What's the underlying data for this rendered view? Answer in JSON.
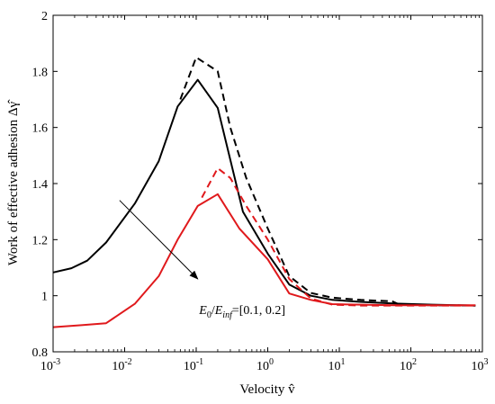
{
  "chart_data": {
    "type": "line",
    "xscale": "log",
    "xlim": [
      0.001,
      1000
    ],
    "ylim": [
      0.8,
      2.0
    ],
    "xlabel": "Velocity v̂",
    "ylabel": "Work of effective adhesion Δγ̂",
    "xticks": [
      {
        "value": 0.001,
        "base": "10",
        "exp": "-3"
      },
      {
        "value": 0.01,
        "base": "10",
        "exp": "-2"
      },
      {
        "value": 0.1,
        "base": "10",
        "exp": "-1"
      },
      {
        "value": 1,
        "base": "10",
        "exp": "0"
      },
      {
        "value": 10,
        "base": "10",
        "exp": "1"
      },
      {
        "value": 100,
        "base": "10",
        "exp": "2"
      },
      {
        "value": 1000,
        "base": "10",
        "exp": "3"
      }
    ],
    "yticks": [
      {
        "value": 0.8,
        "label": "0.8"
      },
      {
        "value": 1.0,
        "label": "1"
      },
      {
        "value": 1.2,
        "label": "1.2"
      },
      {
        "value": 1.4,
        "label": "1.4"
      },
      {
        "value": 1.6,
        "label": "1.6"
      },
      {
        "value": 1.8,
        "label": "1.8"
      },
      {
        "value": 2.0,
        "label": "2"
      }
    ],
    "series": [
      {
        "color": "#000000",
        "dash": "solid",
        "x": [
          0.001,
          0.0018,
          0.003,
          0.0055,
          0.014,
          0.03,
          0.055,
          0.105,
          0.2,
          0.45,
          1.0,
          2.0,
          4.0,
          8.0,
          20,
          60,
          200,
          800
        ],
        "y": [
          1.083,
          1.098,
          1.125,
          1.19,
          1.33,
          1.48,
          1.675,
          1.77,
          1.67,
          1.3,
          1.15,
          1.04,
          1.0,
          0.985,
          0.978,
          0.972,
          0.968,
          0.965
        ]
      },
      {
        "color": "#000000",
        "dash": "dashed",
        "x": [
          0.06,
          0.1,
          0.2,
          0.3,
          0.5,
          1.0,
          2.0,
          4.0,
          8.0,
          20,
          55,
          70,
          200,
          800
        ],
        "y": [
          1.7,
          1.85,
          1.8,
          1.6,
          1.42,
          1.24,
          1.07,
          1.01,
          0.993,
          0.985,
          0.98,
          0.968,
          0.966,
          0.965
        ]
      },
      {
        "color": "#e0191c",
        "dash": "solid",
        "x": [
          0.001,
          0.0025,
          0.0055,
          0.014,
          0.03,
          0.055,
          0.105,
          0.2,
          0.4,
          1.0,
          2.0,
          4.0,
          8.0,
          20,
          60,
          200,
          800
        ],
        "y": [
          0.888,
          0.895,
          0.902,
          0.972,
          1.07,
          1.2,
          1.32,
          1.362,
          1.24,
          1.13,
          1.008,
          0.985,
          0.97,
          0.968,
          0.966,
          0.966,
          0.966
        ]
      },
      {
        "color": "#e0191c",
        "dash": "dashed",
        "x": [
          0.12,
          0.2,
          0.3,
          0.5,
          1.0,
          2.0,
          4.0,
          8.0,
          20,
          60,
          200,
          800
        ],
        "y": [
          1.35,
          1.455,
          1.42,
          1.32,
          1.2,
          1.06,
          0.99,
          0.968,
          0.965,
          0.965,
          0.965,
          0.965
        ]
      }
    ],
    "annotation": {
      "text_parts": [
        {
          "t": "E",
          "style": "italic",
          "sub": false
        },
        {
          "t": "0",
          "style": "normal",
          "sub": true
        },
        {
          "t": "/",
          "style": "normal",
          "sub": false
        },
        {
          "t": "E",
          "style": "italic",
          "sub": false
        },
        {
          "t": "inf",
          "style": "italic",
          "sub": true
        },
        {
          "t": "=[0.1, 0.2]",
          "style": "normal",
          "sub": false
        }
      ],
      "arrow_from": [
        0.0085,
        1.34
      ],
      "arrow_to": [
        0.105,
        1.06
      ],
      "text_at": [
        0.11,
        0.935
      ]
    }
  }
}
